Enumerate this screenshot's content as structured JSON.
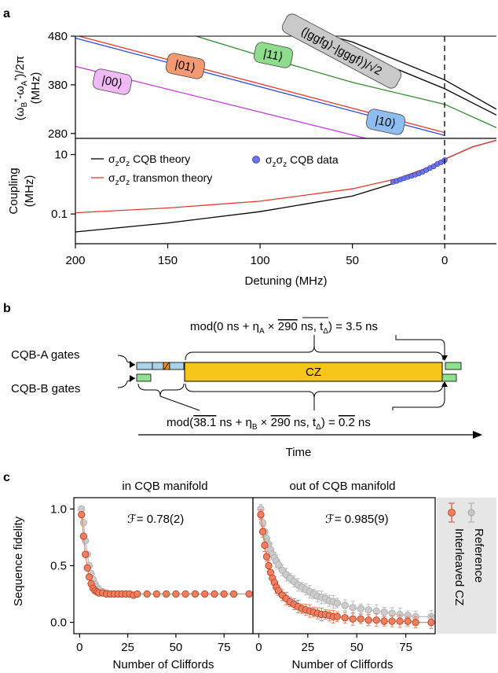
{
  "panels": {
    "a": "a",
    "b": "b",
    "c": "c"
  },
  "chart_data": [
    {
      "type": "line",
      "panel": "a-top",
      "ylabel": "(ω_B^*-ω_A^*)/2π (MHz)",
      "yticks": [
        280,
        380,
        480
      ],
      "ylim": [
        270,
        480
      ],
      "xlim": [
        200,
        -28
      ],
      "series": [
        {
          "name": "|00⟩",
          "color": "#c23fd6",
          "x": [
            200,
            0
          ],
          "y": [
            418,
            230
          ]
        },
        {
          "name": "|01⟩",
          "color": "#e23b2e",
          "x": [
            200,
            0
          ],
          "y": [
            482,
            282
          ]
        },
        {
          "name": "|10⟩",
          "color": "#2d4fcf",
          "x": [
            200,
            0
          ],
          "y": [
            476,
            276
          ]
        },
        {
          "name": "|11⟩",
          "color": "#2e8b2e",
          "x": [
            200,
            150,
            100,
            50,
            0,
            -28
          ],
          "y": [
            540,
            498,
            440,
            385,
            340,
            292
          ]
        },
        {
          "name": "(|ggfg⟩-|gggf⟩)/√2",
          "color": "#000000",
          "x": [
            200,
            100,
            50,
            0,
            -28
          ],
          "y": [
            600,
            500,
            450,
            372,
            318
          ]
        },
        {
          "name": "",
          "color": "#000000",
          "x": [
            200,
            100,
            50,
            0,
            -28
          ],
          "y": [
            620,
            520,
            468,
            390,
            330
          ]
        }
      ],
      "labels": [
        "|00⟩",
        "|01⟩",
        "|11⟩",
        "|10⟩",
        "(|ggfg⟩-|gggf⟩)/√2"
      ]
    },
    {
      "type": "line",
      "panel": "a-bottom",
      "ylabel": "Coupling (MHz)",
      "xlabel": "Detuning (MHz)",
      "log_y": true,
      "yticks": [
        0.1,
        10
      ],
      "ylim": [
        0.01,
        35
      ],
      "xlim": [
        200,
        -28
      ],
      "xticks": [
        200,
        150,
        100,
        50,
        0
      ],
      "legend": [
        "σzσz CQB theory",
        "σzσz transmon theory",
        "σzσz CQB data"
      ],
      "series": [
        {
          "name": "σzσz CQB theory",
          "color": "#000000",
          "x": [
            200,
            150,
            100,
            50,
            25,
            10,
            0,
            -15,
            -28
          ],
          "y": [
            0.025,
            0.05,
            0.12,
            0.4,
            1.2,
            3.2,
            7,
            18,
            30
          ]
        },
        {
          "name": "σzσz transmon theory",
          "color": "#e23b2e",
          "x": [
            200,
            150,
            100,
            50,
            25,
            10,
            0,
            -15,
            -28
          ],
          "y": [
            0.11,
            0.16,
            0.27,
            0.7,
            1.6,
            3.5,
            7,
            18,
            30
          ]
        },
        {
          "name": "σzσz CQB data",
          "color": "#5a62e0",
          "x": [
            28,
            26,
            24,
            22,
            20,
            18,
            16,
            14,
            12,
            10,
            8,
            6,
            4,
            2,
            0
          ],
          "y": [
            1.2,
            1.3,
            1.45,
            1.6,
            1.75,
            1.9,
            2.1,
            2.3,
            2.6,
            3.0,
            3.5,
            4.0,
            4.8,
            5.5,
            6.5
          ]
        }
      ]
    },
    {
      "type": "scatter",
      "panel": "c-left",
      "title": "in CQB manifold",
      "xlabel": "Number of Cliffords",
      "ylabel": "Sequence fidelity",
      "annotation": "ℱ= 0.78(2)",
      "xlim": [
        -3,
        90
      ],
      "ylim": [
        -0.1,
        1.1
      ],
      "xticks": [
        0,
        25,
        50,
        75
      ],
      "yticks": [
        0.0,
        0.5,
        1.0
      ],
      "series": [
        {
          "name": "Reference",
          "color": "#bdbdbd",
          "x": [
            1,
            2,
            3,
            4,
            5,
            6,
            7,
            8,
            9,
            10,
            12,
            14
          ],
          "y": [
            1.0,
            0.88,
            0.72,
            0.6,
            0.5,
            0.43,
            0.38,
            0.34,
            0.31,
            0.29,
            0.27,
            0.26
          ]
        },
        {
          "name": "Interleaved CZ",
          "color": "#ef7f5f",
          "x": [
            1,
            2,
            3,
            4,
            5,
            6,
            7,
            8,
            9,
            10,
            12,
            14,
            16,
            18,
            20,
            22,
            24,
            26,
            28,
            30,
            35,
            40,
            45,
            50,
            55,
            60,
            65,
            70,
            75,
            80,
            88
          ],
          "y": [
            0.95,
            0.76,
            0.6,
            0.48,
            0.4,
            0.34,
            0.3,
            0.28,
            0.27,
            0.26,
            0.26,
            0.25,
            0.25,
            0.25,
            0.25,
            0.25,
            0.25,
            0.25,
            0.24,
            0.25,
            0.25,
            0.25,
            0.25,
            0.25,
            0.25,
            0.25,
            0.25,
            0.25,
            0.25,
            0.25,
            0.25
          ]
        }
      ]
    },
    {
      "type": "scatter",
      "panel": "c-right",
      "title": "out of CQB manifold",
      "xlabel": "Number of Cliffords",
      "annotation": "ℱ= 0.985(9)",
      "xlim": [
        -3,
        90
      ],
      "ylim": [
        -0.1,
        1.1
      ],
      "xticks": [
        0,
        25,
        50,
        75
      ],
      "legend": [
        "Reference",
        "Interleaved CZ"
      ],
      "series": [
        {
          "name": "Reference",
          "color": "#bdbdbd",
          "x": [
            1,
            2,
            3,
            4,
            5,
            6,
            7,
            8,
            9,
            10,
            12,
            14,
            16,
            18,
            20,
            22,
            24,
            26,
            28,
            30,
            32,
            34,
            36,
            38,
            40,
            44,
            48,
            52,
            56,
            60,
            64,
            68,
            72,
            76,
            80,
            88
          ],
          "y": [
            1.0,
            0.88,
            0.8,
            0.74,
            0.69,
            0.64,
            0.6,
            0.57,
            0.54,
            0.51,
            0.46,
            0.42,
            0.39,
            0.36,
            0.33,
            0.31,
            0.29,
            0.27,
            0.25,
            0.23,
            0.22,
            0.21,
            0.19,
            0.18,
            0.17,
            0.15,
            0.13,
            0.12,
            0.11,
            0.1,
            0.09,
            0.08,
            0.07,
            0.06,
            0.05,
            0.05
          ]
        },
        {
          "name": "Interleaved CZ",
          "color": "#ef7f5f",
          "x": [
            1,
            2,
            3,
            4,
            5,
            6,
            7,
            8,
            9,
            10,
            12,
            14,
            16,
            18,
            20,
            22,
            24,
            26,
            28,
            30,
            32,
            34,
            36,
            38,
            40,
            44,
            48,
            52,
            56,
            60,
            64,
            68,
            72,
            76,
            80,
            88
          ],
          "y": [
            0.95,
            0.8,
            0.68,
            0.58,
            0.5,
            0.44,
            0.39,
            0.35,
            0.31,
            0.28,
            0.24,
            0.21,
            0.18,
            0.16,
            0.14,
            0.12,
            0.11,
            0.1,
            0.09,
            0.08,
            0.07,
            0.07,
            0.06,
            0.05,
            0.05,
            0.04,
            0.03,
            0.03,
            0.02,
            0.02,
            0.01,
            0.01,
            0.01,
            0.01,
            0.0,
            0.0
          ]
        }
      ]
    }
  ],
  "diagram_b": {
    "cqb_a_label": "CQB-A gates",
    "cqb_b_label": "CQB-B gates",
    "cz_label": "CZ",
    "top_formula": "mod(0 ns + ηA × 290 ns, tΔ) = 3.5 ns",
    "bottom_formula": "mod(38.1 ns + ηB × 290 ns, tΔ) = 0.2 ns",
    "time_label": "Time",
    "colors": {
      "cz": "#f5c518",
      "gate_a": "#a9d3ea",
      "gate_b": "#8fe08f",
      "hatch": "#e8901a"
    }
  }
}
